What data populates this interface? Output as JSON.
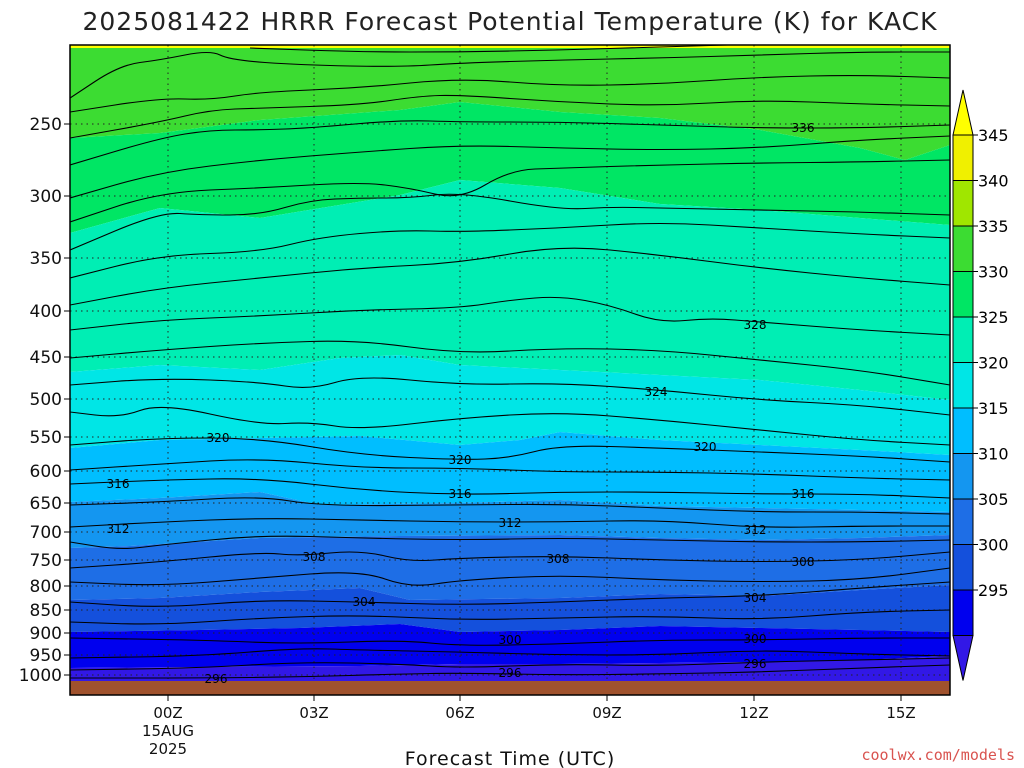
{
  "chart_data": {
    "type": "contour",
    "title": "2025081422 HRRR Forecast Potential Temperature (K) for KACK",
    "xlabel": "Forecast Time (UTC)",
    "credit": "coolwx.com/models",
    "ylabel": "",
    "y_ticks": [
      "250",
      "300",
      "350",
      "400",
      "450",
      "500",
      "550",
      "600",
      "650",
      "700",
      "750",
      "800",
      "850",
      "900",
      "950",
      "1000"
    ],
    "x_ticks": [
      {
        "label": "00Z",
        "sub": [
          "15AUG",
          "2025"
        ]
      },
      {
        "label": "03Z"
      },
      {
        "label": "06Z"
      },
      {
        "label": "09Z"
      },
      {
        "label": "12Z"
      },
      {
        "label": "15Z"
      }
    ],
    "colorbar": {
      "ticks": [
        "295",
        "300",
        "305",
        "310",
        "315",
        "320",
        "325",
        "330",
        "335",
        "340",
        "345"
      ],
      "colors": [
        "#3218e6",
        "#0000ee",
        "#1450dc",
        "#1e6ee6",
        "#1496f0",
        "#00beff",
        "#00e6e6",
        "#00eeb4",
        "#00e664",
        "#3cdc32",
        "#a0e600",
        "#f0f000",
        "#ffff00"
      ]
    },
    "contour_interval_K": 4,
    "contour_labels": [
      {
        "value": "336"
      },
      {
        "value": "328"
      },
      {
        "value": "324"
      },
      {
        "value": "320"
      },
      {
        "value": "320"
      },
      {
        "value": "320"
      },
      {
        "value": "316"
      },
      {
        "value": "316"
      },
      {
        "value": "316"
      },
      {
        "value": "312"
      },
      {
        "value": "312"
      },
      {
        "value": "312"
      },
      {
        "value": "308"
      },
      {
        "value": "308"
      },
      {
        "value": "308"
      },
      {
        "value": "304"
      },
      {
        "value": "304"
      },
      {
        "value": "300"
      },
      {
        "value": "300"
      },
      {
        "value": "296"
      },
      {
        "value": "296"
      },
      {
        "value": "296"
      }
    ],
    "ground_color": "#a0522d",
    "grid": true,
    "legend_position": "right"
  }
}
